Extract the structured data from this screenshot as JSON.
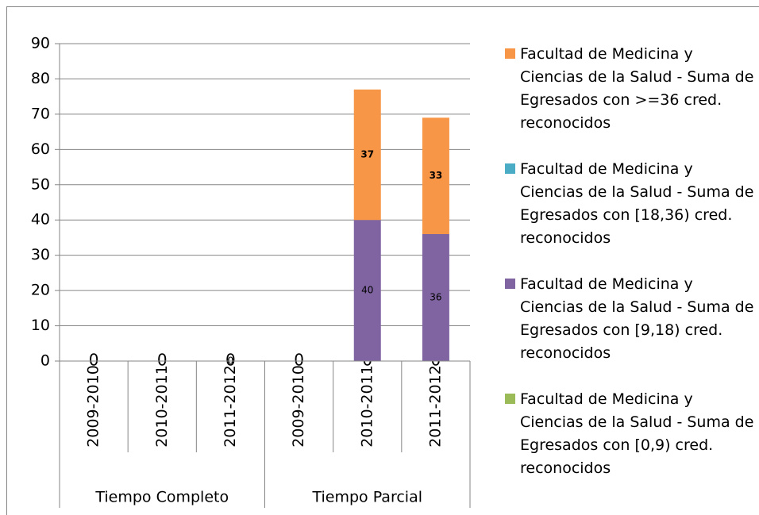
{
  "chart_data": {
    "type": "stacked_bar",
    "categories": [
      "2009-2010",
      "2010-2011",
      "2011-2012",
      "2009-2010",
      "2010-2011",
      "2011-2012"
    ],
    "groups": [
      "Tiempo Completo",
      "Tiempo Parcial"
    ],
    "series": [
      {
        "name": "Facultad de Medicina y Ciencias de la Salud - Suma de Egresados con >=36 cred. reconocidos",
        "color": "#f79646",
        "values": [
          null,
          null,
          null,
          null,
          37,
          33
        ]
      },
      {
        "name": "Facultad de Medicina y Ciencias de la Salud - Suma de Egresados con [18,36) cred. reconocidos",
        "color": "#4bacc6",
        "values": [
          null,
          null,
          null,
          null,
          null,
          null
        ]
      },
      {
        "name": "Facultad de Medicina y Ciencias de la Salud - Suma de Egresados con [9,18) cred. reconocidos",
        "color": "#8064a2",
        "values": [
          null,
          null,
          0,
          null,
          40,
          36
        ]
      },
      {
        "name": "Facultad de Medicina y Ciencias de la Salud - Suma de Egresados con [0,9) cred. reconocidos",
        "color": "#9bbb59",
        "values": [
          0,
          0,
          0,
          0,
          0,
          0
        ]
      }
    ],
    "ylim": [
      0,
      90
    ],
    "yticks": [
      0,
      10,
      20,
      30,
      40,
      50,
      60,
      70,
      80,
      90
    ],
    "grid": true
  }
}
